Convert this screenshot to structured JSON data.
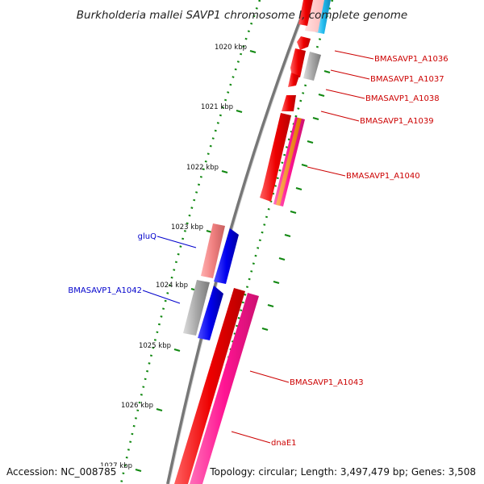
{
  "title": "Burkholderia mallei SAVP1 chromosome I, complete genome",
  "ticks": [
    "1020 kbp",
    "1021 kbp",
    "1022 kbp",
    "1023 kbp",
    "1024 kbp",
    "1025 kbp",
    "1026 kbp",
    "1027 kbp"
  ],
  "genes": {
    "outer": [
      "BMASAVP1_A1036",
      "BMASAVP1_A1037",
      "BMASAVP1_A1038",
      "BMASAVP1_A1039",
      "BMASAVP1_A1040",
      "BMASAVP1_A1043",
      "dnaE1"
    ],
    "inner": [
      "gluQ",
      "BMASAVP1_A1042"
    ]
  },
  "colors": {
    "forward_label": "#cc0000",
    "reverse_label": "#0000cc",
    "feature_red": "#ee0000",
    "feature_pink": "#ff1493",
    "feature_gray": "#a8a8a8",
    "feature_blue": "#0000ee",
    "feature_cyan": "#22bbee",
    "feature_orange": "#ff8c00",
    "tick_green": "#118811",
    "backbone": "#777777"
  },
  "footer": {
    "accession": "Accession: NC_008785",
    "topology": "Topology: circular; Length: 3,497,479 bp; Genes: 3,508"
  }
}
